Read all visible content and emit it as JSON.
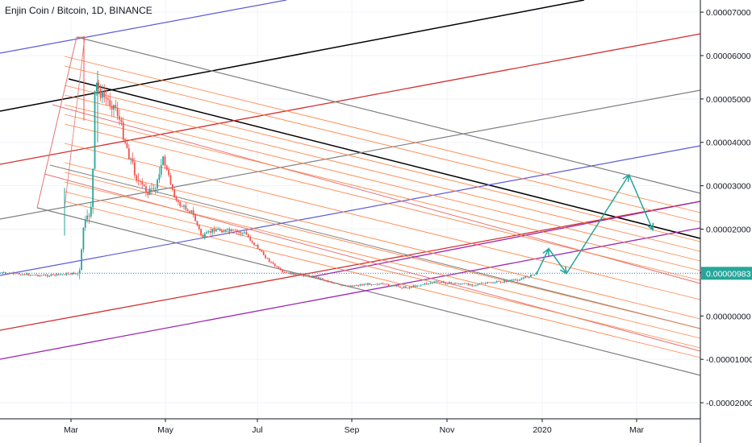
{
  "chart_data": {
    "type": "candlestick",
    "title": "Enjin Coin / Bitcoin, 1D, BINANCE",
    "x_ticks": [
      "Mar",
      "May",
      "Jul",
      "Sep",
      "Nov",
      "2020",
      "Mar"
    ],
    "y_ticks": [
      "0.00007000",
      "0.00006000",
      "0.00005000",
      "0.00004000",
      "0.00003000",
      "0.00002000",
      "0.00001000",
      "0.00000000",
      "-0.00001000",
      "-0.00002000"
    ],
    "y_tick_values": [
      7e-05,
      6e-05,
      5e-05,
      4e-05,
      3e-05,
      2e-05,
      1e-05,
      0.0,
      -1e-05,
      -2e-05
    ],
    "ylim": [
      -2.37e-05,
      7.28e-05
    ],
    "last_price_label": "0.00000983",
    "last_price": 9.83e-06,
    "price_path": [
      [
        "2019-01-01",
        9.9e-06
      ],
      [
        "2019-02-01",
        9.3e-06
      ],
      [
        "2019-02-24",
        9.9e-06
      ],
      [
        "2019-02-26",
        2.06e-05
      ],
      [
        "2019-03-01",
        2.2e-05
      ],
      [
        "2019-03-04",
        2.7e-05
      ],
      [
        "2019-03-06",
        5.4e-05
      ],
      [
        "2019-03-10",
        5.1e-05
      ],
      [
        "2019-03-20",
        4.8e-05
      ],
      [
        "2019-03-28",
        3.8e-05
      ],
      [
        "2019-04-05",
        3e-05
      ],
      [
        "2019-04-15",
        2.8e-05
      ],
      [
        "2019-04-20",
        3.7e-05
      ],
      [
        "2019-04-30",
        2.6e-05
      ],
      [
        "2019-05-10",
        2.4e-05
      ],
      [
        "2019-05-17",
        1.8e-05
      ],
      [
        "2019-05-25",
        2e-05
      ],
      [
        "2019-06-15",
        1.9e-05
      ],
      [
        "2019-06-30",
        1.3e-05
      ],
      [
        "2019-07-10",
        1e-05
      ],
      [
        "2019-08-01",
        9e-06
      ],
      [
        "2019-08-20",
        6.8e-06
      ],
      [
        "2019-09-10",
        7.5e-06
      ],
      [
        "2019-10-01",
        6.5e-06
      ],
      [
        "2019-10-20",
        7.8e-06
      ],
      [
        "2019-11-15",
        7.2e-06
      ],
      [
        "2019-12-15",
        8.3e-06
      ],
      [
        "2019-12-28",
        9.8e-06
      ]
    ],
    "projection_path": [
      [
        "2019-12-28",
        9.8e-06
      ],
      [
        "2020-01-05",
        1.55e-05
      ],
      [
        "2020-01-17",
        9.8e-06
      ],
      [
        "2020-02-28",
        3.25e-05
      ],
      [
        "2020-03-15",
        1.98e-05
      ]
    ],
    "x_range_dates": [
      "2019-01-01",
      "2020-04-16"
    ],
    "drawing_colors": {
      "fib_lines": "#ff7f3f",
      "fib_border": "#e57373",
      "gray": "#808080",
      "black": "#000000",
      "red": "#d32f2f",
      "blue": "#5b5bd6",
      "purple": "#9c27b0",
      "teal": "#26a69a"
    },
    "grid": true
  }
}
